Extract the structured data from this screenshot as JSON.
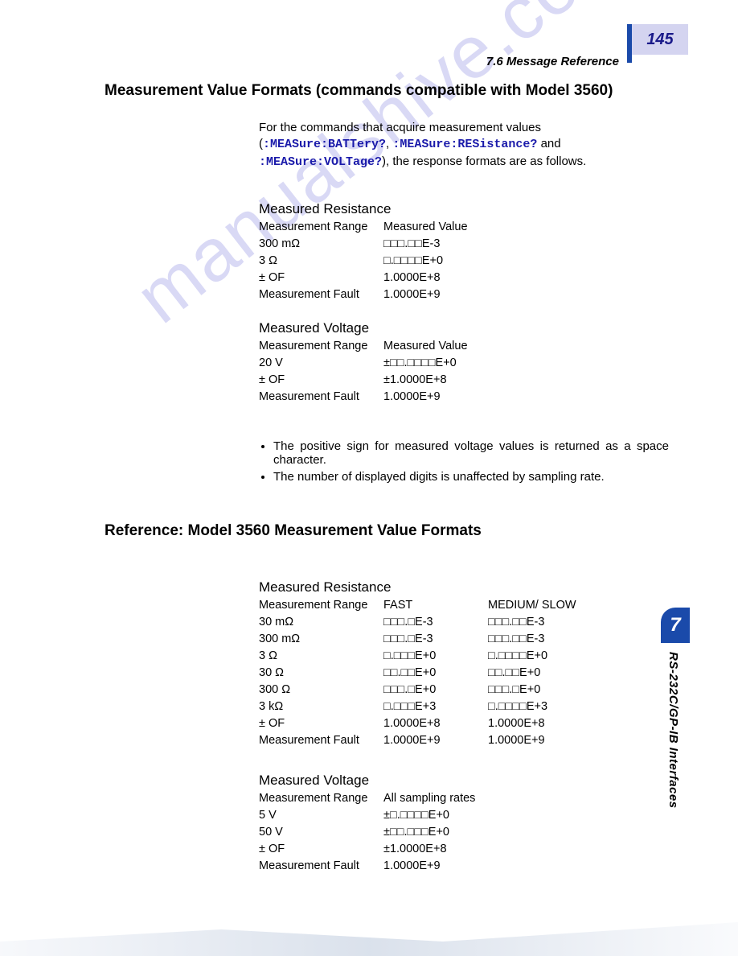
{
  "page_number": "145",
  "header_ref": "7.6  Message Reference",
  "heading1": "Measurement Value Formats (commands compatible with Model 3560)",
  "intro_pre": "For the commands that acquire measurement values (",
  "cmd1": ":MEASure:BATTery?",
  "intro_sep1": ", ",
  "cmd2": ":MEASure:RESistance?",
  "intro_sep2": " and ",
  "cmd3": ":MEASure:VOLTage?",
  "intro_post": "), the response formats are as follows.",
  "sec1_title": "Measured Resistance",
  "sec1_col1": "Measurement Range",
  "sec1_col2": "Measured Value",
  "sec1_rows": [
    {
      "r": "300 mΩ",
      "v": "□□□.□□E-3"
    },
    {
      "r": "3 Ω",
      "v": "□.□□□□E+0"
    },
    {
      "r": "± OF",
      "v": "1.0000E+8"
    },
    {
      "r": "Measurement Fault",
      "v": "1.0000E+9"
    }
  ],
  "sec2_title": "Measured Voltage",
  "sec2_col1": "Measurement Range",
  "sec2_col2": "Measured Value",
  "sec2_rows": [
    {
      "r": "20 V",
      "v": "±□□.□□□□E+0"
    },
    {
      "r": "± OF",
      "v": "±1.0000E+8"
    },
    {
      "r": "Measurement Fault",
      "v": "1.0000E+9"
    }
  ],
  "bullet1": "The positive sign for measured voltage values is returned as a space character.",
  "bullet2": "The number of displayed digits is unaffected by sampling rate.",
  "heading2": "Reference: Model 3560 Measurement Value Formats",
  "sec3_title": "Measured Resistance",
  "sec3_col1": "Measurement Range",
  "sec3_col2": "FAST",
  "sec3_col3": "MEDIUM/ SLOW",
  "sec3_rows": [
    {
      "r": "30 mΩ",
      "a": "□□□.□E-3",
      "b": "□□□.□□E-3"
    },
    {
      "r": "300 mΩ",
      "a": "□□□.□E-3",
      "b": "□□□.□□E-3"
    },
    {
      "r": "3 Ω",
      "a": "□.□□□E+0",
      "b": "□.□□□□E+0"
    },
    {
      "r": "30 Ω",
      "a": "□□.□□E+0",
      "b": "□□.□□E+0"
    },
    {
      "r": "300 Ω",
      "a": "□□□.□E+0",
      "b": "□□□.□E+0"
    },
    {
      "r": "3 kΩ",
      "a": "□.□□□E+3",
      "b": "□.□□□□E+3"
    },
    {
      "r": "± OF",
      "a": "1.0000E+8",
      "b": "1.0000E+8"
    },
    {
      "r": "Measurement Fault",
      "a": "1.0000E+9",
      "b": "1.0000E+9"
    }
  ],
  "sec4_title": "Measured Voltage",
  "sec4_col1": "Measurement Range",
  "sec4_col2": "All sampling rates",
  "sec4_rows": [
    {
      "r": "5 V",
      "v": "±□.□□□□E+0"
    },
    {
      "r": "50 V",
      "v": "±□□.□□□E+0"
    },
    {
      "r": "± OF",
      "v": "±1.0000E+8"
    },
    {
      "r": "Measurement Fault",
      "v": "1.0000E+9"
    }
  ],
  "chapter_num": "7",
  "sidebar_text": "RS-232C/GP-IB Interfaces",
  "watermark": "manualshive.com"
}
